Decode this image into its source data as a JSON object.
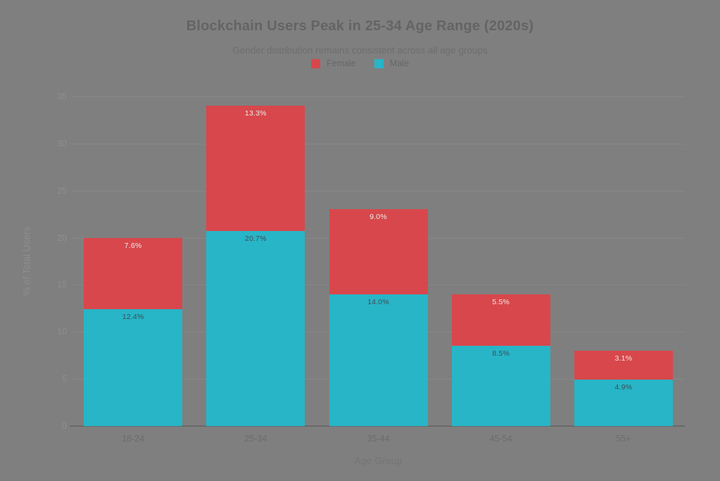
{
  "page": {
    "background_color": "#7f7f7f"
  },
  "chart_data": {
    "type": "bar",
    "stacked": true,
    "title": "Blockchain Users Peak in 25-34 Age Range (2020s)",
    "subtitle": "Gender distribution remains consistent across all age groups",
    "xlabel": "Age Group",
    "ylabel": "% of Total Users",
    "categories": [
      "18-24",
      "25-34",
      "35-44",
      "45-54",
      "55+"
    ],
    "series": [
      {
        "name": "Male",
        "color": "#27b5c7",
        "label_color": "#404c54",
        "values": [
          12.4,
          20.7,
          14.0,
          8.5,
          4.9
        ],
        "labels": [
          "12.4%",
          "20.7%",
          "14.0%",
          "8.5%",
          "4.9%"
        ]
      },
      {
        "name": "Female",
        "color": "#d8474b",
        "label_color": "#ebebeb",
        "values": [
          7.6,
          13.3,
          9.0,
          5.5,
          3.1
        ],
        "labels": [
          "7.6%",
          "13.3%",
          "9.0%",
          "5.5%",
          "3.1%"
        ]
      }
    ],
    "legend": [
      {
        "label": "Female",
        "color": "#d8474b"
      },
      {
        "label": "Male",
        "color": "#27b5c7"
      }
    ],
    "legend_position": "top-center",
    "ylim": [
      0,
      35
    ],
    "yticks": [
      0,
      5,
      10,
      15,
      20,
      25,
      30,
      35
    ],
    "grid": true
  }
}
